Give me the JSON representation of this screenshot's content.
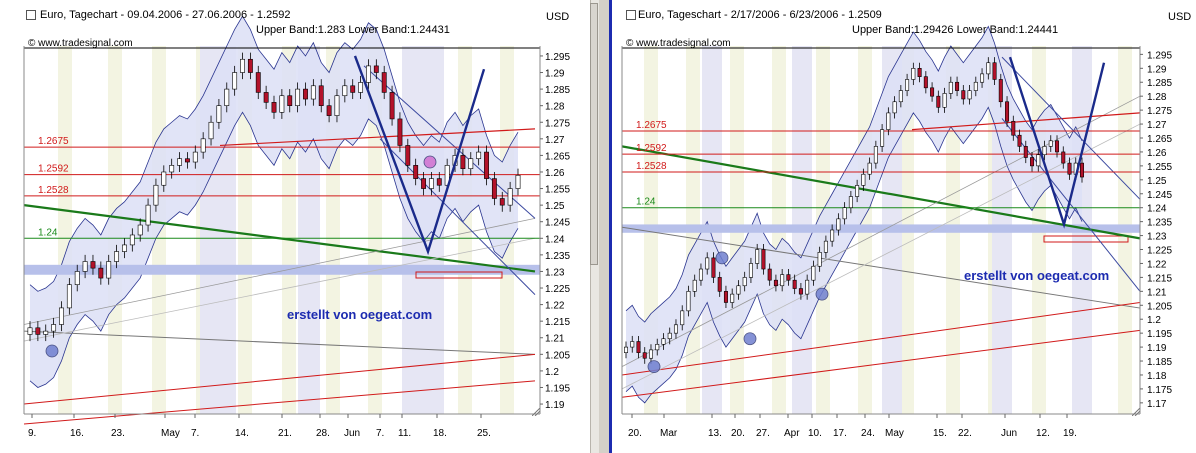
{
  "charts": [
    {
      "title": "Euro, Tagechart - 09.04.2006 - 27.06.2006 - 1.2592",
      "bands": "Upper Band:1.283 Lower Band:1.24431",
      "copyright": "© www.tradesignal.com",
      "currency": "USD",
      "credit": "erstellt von oegeat.com",
      "y_ticks": [
        "1.295",
        "1.29",
        "1.285",
        "1.28",
        "1.275",
        "1.27",
        "1.265",
        "1.26",
        "1.255",
        "1.25",
        "1.245",
        "1.24",
        "1.235",
        "1.23",
        "1.225",
        "1.22",
        "1.215",
        "1.21",
        "1.205",
        "1.2",
        "1.195",
        "1.19"
      ],
      "x_ticks": [
        "9.",
        "16.",
        "23.",
        "May",
        "7.",
        "14.",
        "21.",
        "28.",
        "Jun",
        "7.",
        "11.",
        "18.",
        "25."
      ],
      "levels": [
        {
          "label": "1.2675",
          "value": 1.2675,
          "color": "#d11a1a"
        },
        {
          "label": "1.2592",
          "value": 1.2592,
          "color": "#d11a1a"
        },
        {
          "label": "1.2528",
          "value": 1.2528,
          "color": "#d11a1a"
        },
        {
          "label": "1.24",
          "value": 1.24,
          "color": "#1a8a1a"
        }
      ],
      "candle_closes": [
        1.213,
        1.211,
        1.212,
        1.214,
        1.219,
        1.226,
        1.23,
        1.233,
        1.231,
        1.228,
        1.233,
        1.236,
        1.238,
        1.241,
        1.244,
        1.25,
        1.256,
        1.26,
        1.262,
        1.264,
        1.263,
        1.266,
        1.27,
        1.275,
        1.28,
        1.285,
        1.29,
        1.294,
        1.29,
        1.284,
        1.281,
        1.278,
        1.283,
        1.28,
        1.285,
        1.282,
        1.286,
        1.28,
        1.277,
        1.283,
        1.286,
        1.284,
        1.287,
        1.292,
        1.29,
        1.284,
        1.276,
        1.268,
        1.262,
        1.258,
        1.255,
        1.258,
        1.256,
        1.262,
        1.265,
        1.261,
        1.264,
        1.266,
        1.258,
        1.252,
        1.25,
        1.255,
        1.259
      ]
    },
    {
      "title": "Euro, Tageschart - 2/17/2006 - 6/23/2006 - 1.2509",
      "bands": "Upper Band:1.29426 Lower Band:1.24441",
      "copyright": "© www.tradesignal.com",
      "currency": "USD",
      "credit": "erstellt von oegeat.com",
      "y_ticks": [
        "1.295",
        "1.29",
        "1.285",
        "1.28",
        "1.275",
        "1.27",
        "1.265",
        "1.26",
        "1.255",
        "1.25",
        "1.245",
        "1.24",
        "1.235",
        "1.23",
        "1.225",
        "1.22",
        "1.215",
        "1.21",
        "1.205",
        "1.2",
        "1.195",
        "1.19",
        "1.185",
        "1.18",
        "1.175",
        "1.17"
      ],
      "x_ticks": [
        "20.",
        "Mar",
        "13.",
        "20.",
        "27.",
        "Apr",
        "10.",
        "17.",
        "24.",
        "May",
        "15.",
        "22.",
        "Jun",
        "12.",
        "19."
      ],
      "levels": [
        {
          "label": "1.2675",
          "value": 1.2675,
          "color": "#d11a1a"
        },
        {
          "label": "1.2592",
          "value": 1.2592,
          "color": "#d11a1a"
        },
        {
          "label": "1.2528",
          "value": 1.2528,
          "color": "#d11a1a"
        },
        {
          "label": "1.24",
          "value": 1.24,
          "color": "#1a8a1a"
        }
      ],
      "candle_closes": [
        1.19,
        1.192,
        1.188,
        1.186,
        1.189,
        1.191,
        1.193,
        1.195,
        1.198,
        1.203,
        1.21,
        1.214,
        1.218,
        1.222,
        1.215,
        1.21,
        1.206,
        1.209,
        1.212,
        1.215,
        1.22,
        1.225,
        1.218,
        1.214,
        1.212,
        1.216,
        1.214,
        1.211,
        1.209,
        1.214,
        1.219,
        1.224,
        1.228,
        1.232,
        1.236,
        1.24,
        1.244,
        1.248,
        1.252,
        1.256,
        1.262,
        1.268,
        1.274,
        1.278,
        1.282,
        1.286,
        1.29,
        1.287,
        1.283,
        1.28,
        1.276,
        1.281,
        1.285,
        1.282,
        1.279,
        1.282,
        1.285,
        1.288,
        1.292,
        1.286,
        1.278,
        1.271,
        1.266,
        1.262,
        1.258,
        1.255,
        1.259,
        1.262,
        1.264,
        1.26,
        1.256,
        1.252,
        1.256,
        1.251
      ]
    }
  ]
}
